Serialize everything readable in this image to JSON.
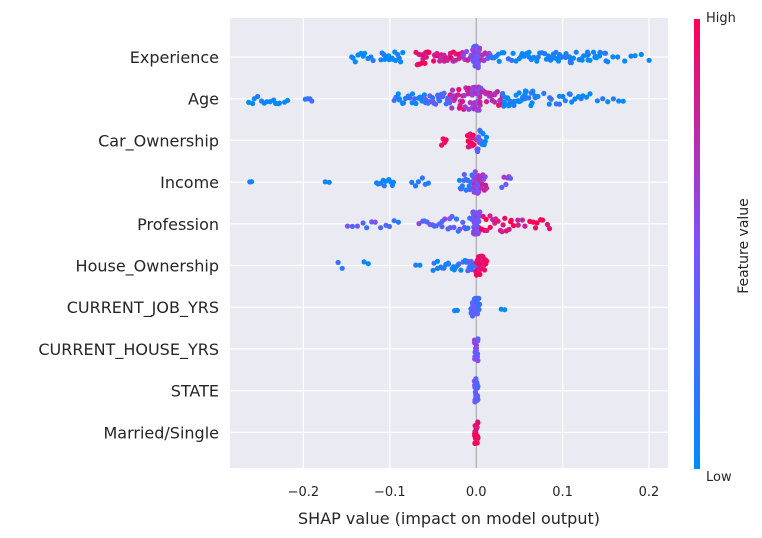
{
  "chart_data": {
    "type": "scatter",
    "subtype": "shap-beeswarm",
    "title": "",
    "xlabel": "SHAP value (impact on model output)",
    "ylabel": "",
    "xlim": [
      -0.285,
      0.222
    ],
    "xticks": [
      -0.2,
      -0.1,
      0.0,
      0.1,
      0.2
    ],
    "xtick_labels": [
      "−0.2",
      "−0.1",
      "0.0",
      "0.1",
      "0.2"
    ],
    "grid": true,
    "background": "#eaeaf2",
    "colorbar": {
      "label": "Feature value",
      "high_label": "High",
      "low_label": "Low",
      "low_color": "#008bfb",
      "mid_color": "#7c52ff",
      "high_color": "#ff0052"
    },
    "features": [
      {
        "name": "Experience",
        "clusters": [
          [
            -0.145,
            -0.12,
            10,
            0,
            0.2
          ],
          [
            -0.11,
            -0.085,
            16,
            0,
            0.2
          ],
          [
            -0.07,
            -0.055,
            14,
            0.9,
            0.5
          ],
          [
            -0.05,
            -0.02,
            24,
            0.85,
            0.25
          ],
          [
            -0.018,
            -0.006,
            8,
            0.7,
            0.3
          ],
          [
            -0.004,
            0.004,
            40,
            0.5,
            0.8
          ],
          [
            0.006,
            0.02,
            10,
            0.6,
            0.2
          ],
          [
            0.02,
            0.06,
            16,
            0.08,
            0.15
          ],
          [
            0.06,
            0.09,
            14,
            0.05,
            0.2
          ],
          [
            0.09,
            0.15,
            36,
            0.03,
            0.3
          ],
          [
            0.15,
            0.2,
            8,
            0,
            0.15
          ]
        ]
      },
      {
        "name": "Age",
        "clusters": [
          [
            -0.262,
            -0.22,
            14,
            0,
            0.2
          ],
          [
            -0.198,
            -0.19,
            4,
            0.2,
            0.1
          ],
          [
            -0.095,
            -0.06,
            20,
            0.1,
            0.2
          ],
          [
            -0.06,
            -0.03,
            22,
            0.3,
            0.3
          ],
          [
            -0.03,
            -0.005,
            28,
            0.75,
            0.8
          ],
          [
            -0.005,
            0.005,
            34,
            0.6,
            0.9
          ],
          [
            0.005,
            0.03,
            22,
            0.75,
            0.5
          ],
          [
            0.03,
            0.07,
            36,
            0.05,
            0.5
          ],
          [
            0.08,
            0.13,
            18,
            0.05,
            0.25
          ],
          [
            0.14,
            0.17,
            6,
            0.1,
            0.15
          ]
        ]
      },
      {
        "name": "Car_Ownership",
        "clusters": [
          [
            -0.04,
            -0.035,
            4,
            1,
            0.25
          ],
          [
            -0.01,
            -0.003,
            14,
            1,
            0.35
          ],
          [
            0.0,
            0.005,
            8,
            0.5,
            0.9
          ],
          [
            0.005,
            0.012,
            6,
            0.05,
            0.6
          ]
        ]
      },
      {
        "name": "Income",
        "clusters": [
          [
            -0.262,
            -0.26,
            2,
            0,
            0.05
          ],
          [
            -0.175,
            -0.17,
            2,
            0,
            0.05
          ],
          [
            -0.115,
            -0.095,
            10,
            0.05,
            0.1
          ],
          [
            -0.075,
            -0.055,
            6,
            0.1,
            0.15
          ],
          [
            -0.02,
            -0.003,
            16,
            0.2,
            0.5
          ],
          [
            -0.003,
            0.003,
            28,
            0.6,
            0.8
          ],
          [
            0.003,
            0.012,
            12,
            0.7,
            0.5
          ],
          [
            0.03,
            0.04,
            6,
            0.5,
            0.25
          ]
        ]
      },
      {
        "name": "Profession",
        "clusters": [
          [
            -0.148,
            -0.1,
            10,
            0.4,
            0.15
          ],
          [
            -0.095,
            -0.09,
            2,
            0.2,
            0.05
          ],
          [
            -0.065,
            -0.03,
            14,
            0.4,
            0.25
          ],
          [
            -0.03,
            -0.005,
            12,
            0.3,
            0.45
          ],
          [
            -0.004,
            0.004,
            34,
            0.5,
            0.9
          ],
          [
            0.005,
            0.04,
            18,
            0.95,
            0.5
          ],
          [
            0.04,
            0.085,
            14,
            0.95,
            0.25
          ]
        ]
      },
      {
        "name": "House_Ownership",
        "clusters": [
          [
            -0.16,
            -0.155,
            2,
            0.1,
            0.1
          ],
          [
            -0.13,
            -0.125,
            2,
            0,
            0.1
          ],
          [
            -0.07,
            -0.065,
            2,
            0,
            0.05
          ],
          [
            -0.05,
            -0.01,
            22,
            0.1,
            0.2
          ],
          [
            -0.01,
            0.0,
            12,
            0.3,
            0.25
          ],
          [
            0.0,
            0.008,
            28,
            1,
            0.65
          ],
          [
            0.008,
            0.012,
            6,
            1,
            0.35
          ]
        ]
      },
      {
        "name": "CURRENT_JOB_YRS",
        "clusters": [
          [
            -0.025,
            -0.022,
            2,
            0.1,
            0.1
          ],
          [
            -0.006,
            0.004,
            28,
            0.3,
            0.6
          ],
          [
            0.029,
            0.033,
            2,
            0.1,
            0.1
          ]
        ]
      },
      {
        "name": "CURRENT_HOUSE_YRS",
        "clusters": [
          [
            -0.002,
            0.002,
            24,
            0.5,
            0.9
          ]
        ]
      },
      {
        "name": "STATE",
        "clusters": [
          [
            -0.002,
            0.002,
            24,
            0.4,
            0.9
          ]
        ]
      },
      {
        "name": "Married/Single",
        "clusters": [
          [
            -0.002,
            0.002,
            26,
            0.95,
            0.85
          ]
        ]
      }
    ]
  }
}
